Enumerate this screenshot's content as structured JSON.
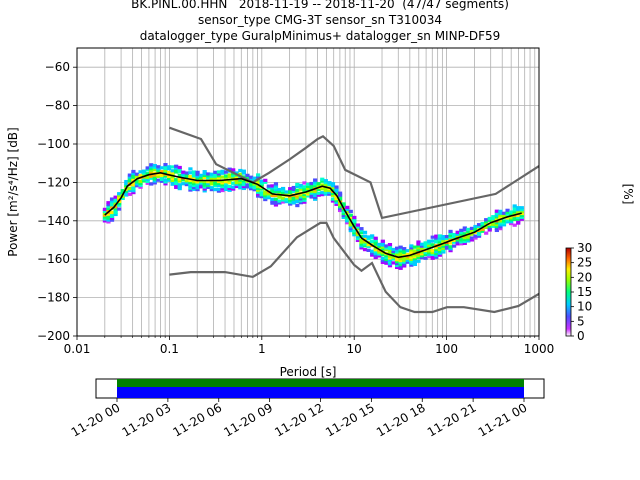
{
  "title_lines": [
    "BK.PINL.00.HHN   2018-11-19 -- 2018-11-20  (47/47 segments)",
    "sensor_type CMG-3T sensor_sn T310034",
    "datalogger_type GuralpMinimus+ datalogger_sn MINP-DF59"
  ],
  "chart_data": [
    {
      "type": "heatmap",
      "xlabel": "Period [s]",
      "ylabel": "Power [m²/s⁴/Hz] [dB]",
      "xscale": "log",
      "xlim": [
        0.01,
        1000
      ],
      "ylim": [
        -200,
        -50
      ],
      "x_ticks": [
        0.01,
        0.1,
        1,
        10,
        100,
        1000
      ],
      "x_tick_labels": [
        "0.01",
        "0.1",
        "1",
        "10",
        "100",
        "1000"
      ],
      "y_ticks": [
        -200,
        -180,
        -160,
        -140,
        -120,
        -100,
        -80,
        -60
      ],
      "y_tick_labels": [
        "−200",
        "−180",
        "−160",
        "−140",
        "−120",
        "−100",
        "−80",
        "−60"
      ],
      "grid": true,
      "noise_models": [
        {
          "x": [
            0.1,
            0.22,
            0.32,
            0.8,
            1.2,
            2.0,
            3.0,
            4.0,
            4.6,
            6.0,
            8.0,
            15.0,
            20.0,
            340.0,
            1000.0
          ],
          "y": [
            -91.5,
            -97.4,
            -110.5,
            -120.0,
            -115.0,
            -108.0,
            -102.0,
            -97.5,
            -96.0,
            -101.0,
            -113.5,
            -120.0,
            -138.5,
            -126.0,
            -111.5
          ]
        },
        {
          "x": [
            0.1,
            0.17,
            0.4,
            0.8,
            1.25,
            2.4,
            4.3,
            5.0,
            6.0,
            10.0,
            12.0,
            15.6,
            21.9,
            31.6,
            45.0,
            70.0,
            101.0,
            154.0,
            328.0,
            600.0,
            1000.0
          ],
          "y": [
            -168.0,
            -166.7,
            -166.7,
            -169.2,
            -163.7,
            -148.6,
            -141.1,
            -141.1,
            -149.0,
            -163.0,
            -166.0,
            -162.0,
            -177.0,
            -185.0,
            -187.5,
            -187.5,
            -185.0,
            -185.0,
            -187.5,
            -184.4,
            -178.0
          ]
        }
      ],
      "median": {
        "x": [
          0.02,
          0.025,
          0.03,
          0.035,
          0.045,
          0.06,
          0.08,
          0.12,
          0.2,
          0.35,
          0.6,
          0.9,
          1.3,
          2.0,
          3.0,
          4.5,
          5.5,
          6.5,
          8.0,
          10.0,
          12.0,
          16.0,
          22.0,
          30.0,
          40.0,
          60.0,
          90.0,
          130.0,
          200.0,
          300.0,
          450.0,
          650.0
        ],
        "y": [
          -137,
          -133,
          -128,
          -122,
          -118,
          -116,
          -115,
          -117,
          -119,
          -119,
          -118,
          -121,
          -126,
          -127,
          -125,
          -122,
          -123,
          -127,
          -135,
          -143,
          -149,
          -153,
          -157,
          -159,
          -158,
          -155,
          -152,
          -149,
          -146,
          -141,
          -138,
          -136
        ]
      },
      "colorbar": {
        "label": "[%]",
        "min": 0,
        "max": 30,
        "ticks": [
          0,
          5,
          10,
          15,
          20,
          25,
          30
        ],
        "tick_labels": [
          "0",
          "5",
          "10",
          "15",
          "20",
          "25",
          "30"
        ]
      }
    },
    {
      "type": "bar",
      "orientation": "timeline",
      "x_tick_labels": [
        "11-20 00",
        "11-20 03",
        "11-20 06",
        "11-20 09",
        "11-20 12",
        "11-20 15",
        "11-20 18",
        "11-20 21",
        "11-21 00"
      ],
      "data_coverage_hours": [
        0,
        24
      ],
      "colors": {
        "coverage": "#008000",
        "gaps": "#0000ff"
      }
    }
  ],
  "colors": {
    "noise_model": "#666666",
    "median": "#000000",
    "colormap": [
      "#ffffff",
      "#aa00ff",
      "#00d2ff",
      "#00ff66",
      "#aaff00",
      "#ffff00",
      "#ffaa00",
      "#ff2a00",
      "#b30000"
    ]
  }
}
